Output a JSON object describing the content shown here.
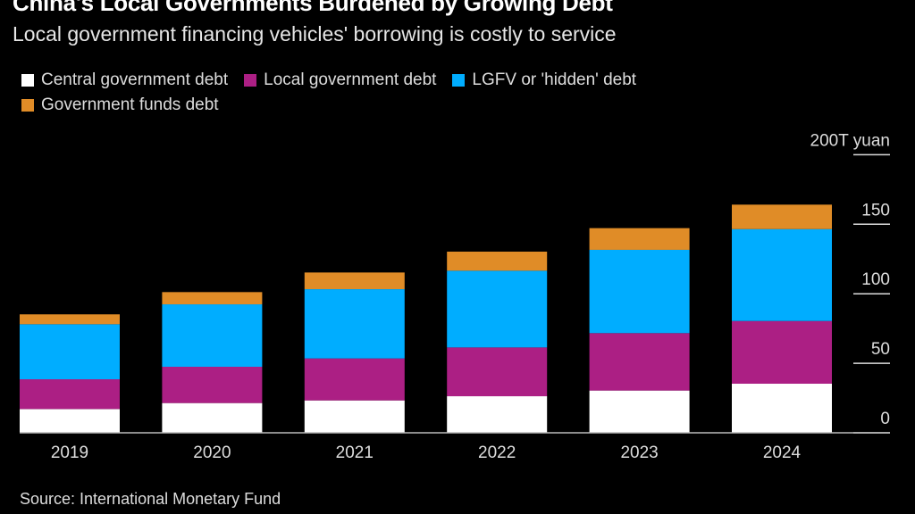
{
  "title": "China's Local Governments Burdened by Growing Debt",
  "subtitle": "Local government financing vehicles' borrowing is costly to service",
  "source": "Source: International Monetary Fund",
  "chart_data": {
    "type": "bar",
    "stacked": true,
    "categories": [
      "2019",
      "2020",
      "2021",
      "2022",
      "2023",
      "2024"
    ],
    "series": [
      {
        "name": "Central government debt",
        "color": "#ffffff",
        "values": [
          17.1,
          21.4,
          23.3,
          26.3,
          30.4,
          35.3
        ]
      },
      {
        "name": "Local government debt",
        "color": "#ac1f84",
        "values": [
          21.4,
          26.1,
          30.2,
          35.1,
          41.3,
          45.1
        ]
      },
      {
        "name": "LGFV or 'hidden' debt",
        "color": "#00adff",
        "values": [
          39.6,
          44.9,
          49.8,
          55.2,
          59.9,
          66.1
        ]
      },
      {
        "name": "Government funds debt",
        "color": "#e08c27",
        "values": [
          7.1,
          8.8,
          12.0,
          13.7,
          15.6,
          17.6
        ]
      }
    ],
    "yticks": [
      "0",
      "50",
      "100",
      "150",
      "200T yuan"
    ],
    "ytick_values": [
      0,
      50,
      100,
      150,
      200
    ],
    "ylim": [
      0,
      200
    ],
    "y_axis_side": "right",
    "legend_placement": "top-left",
    "xlabel": "",
    "ylabel": ""
  }
}
